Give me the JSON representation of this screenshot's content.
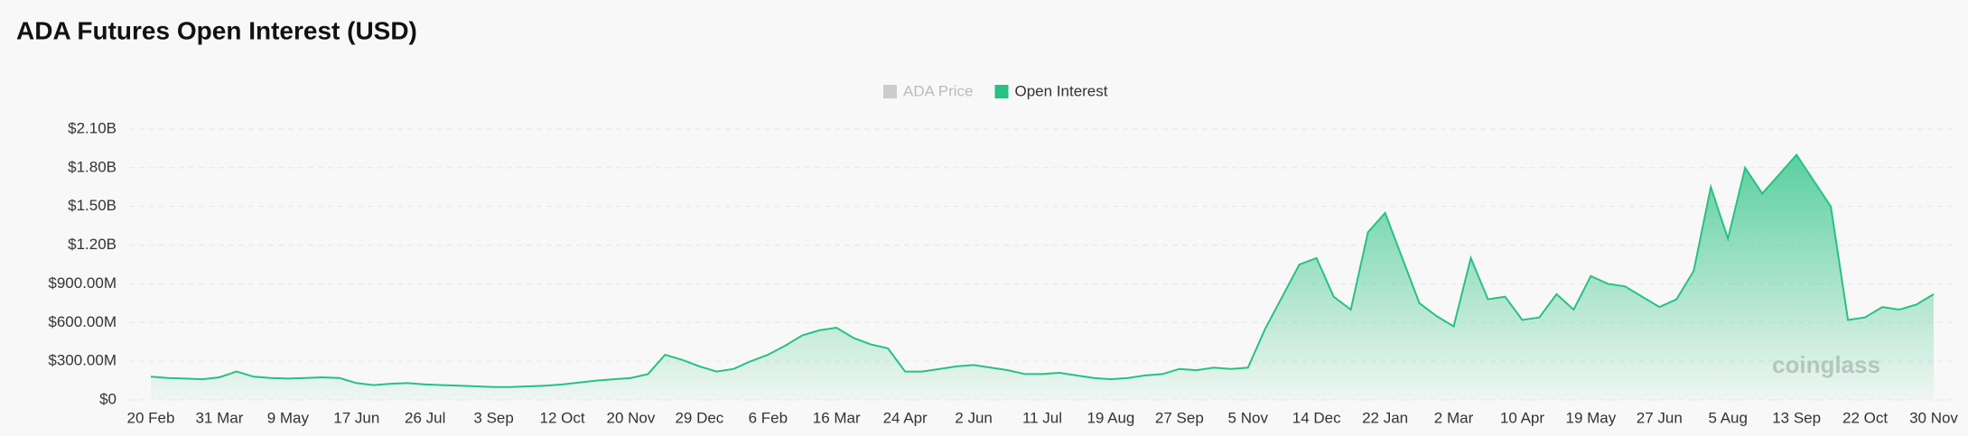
{
  "chart_data": {
    "type": "area",
    "title": "ADA Futures Open Interest (USD)",
    "categories": [
      "20 Feb",
      null,
      null,
      null,
      "31 Mar",
      null,
      null,
      null,
      "9 May",
      null,
      null,
      null,
      "17 Jun",
      null,
      null,
      null,
      "26 Jul",
      null,
      null,
      null,
      "3 Sep",
      null,
      null,
      null,
      "12 Oct",
      null,
      null,
      null,
      "20 Nov",
      null,
      null,
      null,
      "29 Dec",
      null,
      null,
      null,
      "6 Feb",
      null,
      null,
      null,
      "16 Mar",
      null,
      null,
      null,
      "24 Apr",
      null,
      null,
      null,
      "2 Jun",
      null,
      null,
      null,
      "11 Jul",
      null,
      null,
      null,
      "19 Aug",
      null,
      null,
      null,
      "27 Sep",
      null,
      null,
      null,
      "5 Nov",
      null,
      null,
      null,
      "14 Dec",
      null,
      null,
      null,
      "22 Jan",
      null,
      null,
      null,
      "2 Mar",
      null,
      null,
      null,
      "10 Apr",
      null,
      null,
      null,
      "19 May",
      null,
      null,
      null,
      "27 Jun",
      null,
      null,
      null,
      "5 Aug",
      null,
      null,
      null,
      "13 Sep",
      null,
      null,
      null,
      "22 Oct",
      null,
      null,
      null,
      "30 Nov"
    ],
    "series": [
      {
        "name": "ADA Price",
        "color": "#cccccc",
        "hidden": true
      },
      {
        "name": "Open Interest",
        "color": "#26c281",
        "values": [
          180000000,
          170000000,
          165000000,
          160000000,
          175000000,
          220000000,
          180000000,
          170000000,
          165000000,
          170000000,
          175000000,
          170000000,
          130000000,
          115000000,
          125000000,
          130000000,
          120000000,
          115000000,
          110000000,
          105000000,
          100000000,
          100000000,
          105000000,
          110000000,
          120000000,
          135000000,
          150000000,
          160000000,
          170000000,
          200000000,
          350000000,
          310000000,
          260000000,
          220000000,
          240000000,
          300000000,
          350000000,
          420000000,
          500000000,
          540000000,
          560000000,
          480000000,
          430000000,
          400000000,
          220000000,
          220000000,
          240000000,
          260000000,
          270000000,
          250000000,
          230000000,
          200000000,
          200000000,
          210000000,
          190000000,
          170000000,
          160000000,
          170000000,
          190000000,
          200000000,
          240000000,
          230000000,
          250000000,
          240000000,
          250000000,
          550000000,
          800000000,
          1050000000,
          1100000000,
          800000000,
          700000000,
          1300000000,
          1450000000,
          1100000000,
          750000000,
          650000000,
          570000000,
          1100000000,
          780000000,
          800000000,
          620000000,
          640000000,
          820000000,
          700000000,
          960000000,
          900000000,
          880000000,
          800000000,
          720000000,
          780000000,
          1000000000,
          1650000000,
          1250000000,
          1800000000,
          1600000000,
          1750000000,
          1900000000,
          1700000000,
          1500000000,
          620000000,
          640000000,
          720000000,
          700000000,
          740000000,
          820000000
        ]
      }
    ],
    "ylim": [
      0,
      2100000000
    ],
    "yticks": [
      {
        "value": 0,
        "label": "$0"
      },
      {
        "value": 300000000,
        "label": "$300.00M"
      },
      {
        "value": 600000000,
        "label": "$600.00M"
      },
      {
        "value": 900000000,
        "label": "$900.00M"
      },
      {
        "value": 1200000000,
        "label": "$1.20B"
      },
      {
        "value": 1500000000,
        "label": "$1.50B"
      },
      {
        "value": 1800000000,
        "label": "$1.80B"
      },
      {
        "value": 2100000000,
        "label": "$2.10B"
      }
    ],
    "grid": true,
    "legend": "top",
    "watermark": "coinglass"
  }
}
